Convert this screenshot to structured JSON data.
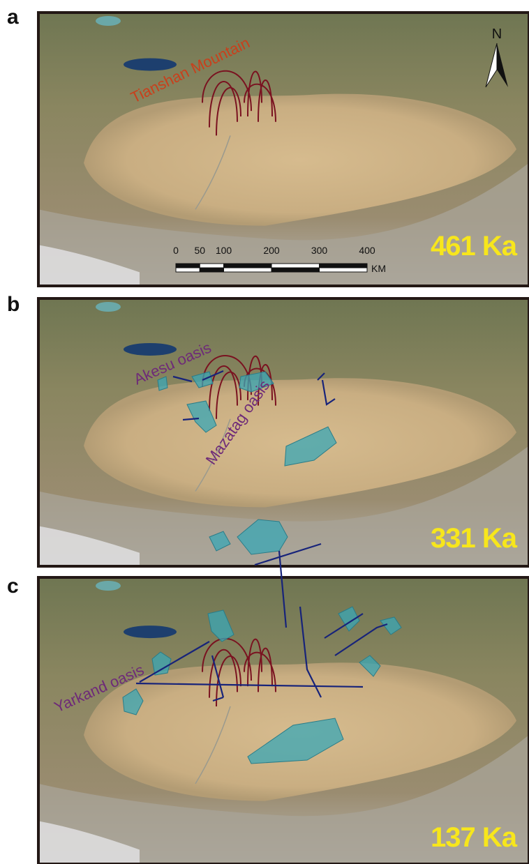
{
  "panels": [
    {
      "label": "a",
      "annotations": [
        "Tianshan Mountain"
      ],
      "age": "461 Ka",
      "north": "N",
      "scale_bar": {
        "ticks": [
          0,
          50,
          100,
          200,
          300,
          400
        ],
        "unit": "KM"
      }
    },
    {
      "label": "b",
      "annotations": [
        "Akesu oasis",
        "Mazatag oasis"
      ],
      "age": "331 Ka"
    },
    {
      "label": "c",
      "annotations": [
        "Yarkand oasis"
      ],
      "age": "137 Ka"
    }
  ]
}
